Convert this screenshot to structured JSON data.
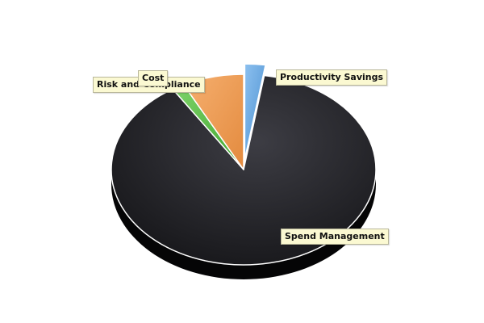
{
  "chart_data": {
    "type": "pie",
    "title": "",
    "legend": "none",
    "categories": [
      "Productivity Savings",
      "Spend Management",
      "Risk and Compliance",
      "Cost"
    ],
    "values": [
      2.5,
      88.5,
      1.5,
      7.5
    ],
    "unit": "%",
    "exploded": [
      "Productivity Savings"
    ],
    "colors": [
      "#5b9fd8",
      "#222226",
      "#4cb43c",
      "#ee9a52"
    ]
  }
}
